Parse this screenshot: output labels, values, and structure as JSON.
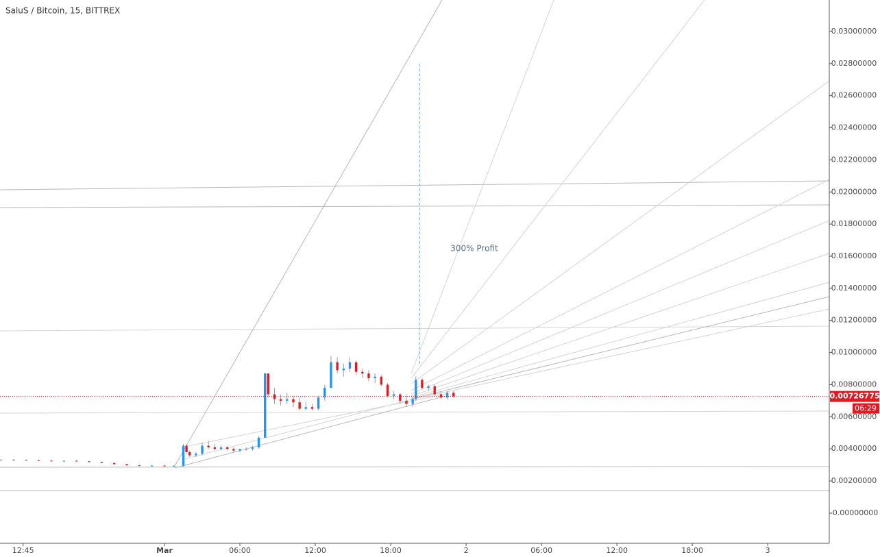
{
  "chart_data": {
    "type": "candlestick",
    "title": "SaluS / Bitcoin, 15, BITTREX",
    "annotation": "300% Profit",
    "countdown": "06:29",
    "up_color": "#2196f3",
    "down_color": "#e01b24",
    "xlim": [
      -13.09,
      52.9
    ],
    "xticks": [
      {
        "value": -11.25,
        "label": "12:45"
      },
      {
        "value": 0,
        "label": "Mar"
      },
      {
        "value": 6,
        "label": "06:00"
      },
      {
        "value": 12,
        "label": "12:00"
      },
      {
        "value": 18,
        "label": "18:00"
      },
      {
        "value": 24,
        "label": "2"
      },
      {
        "value": 30,
        "label": "06:00"
      },
      {
        "value": 36,
        "label": "12:00"
      },
      {
        "value": 42,
        "label": "18:00"
      },
      {
        "value": 48,
        "label": "3"
      }
    ],
    "ylim": [
      -0.00188,
      0.03196
    ],
    "yticks": [
      {
        "value": 0.03,
        "label": "0.03000000"
      },
      {
        "value": 0.028,
        "label": "0.02800000"
      },
      {
        "value": 0.026,
        "label": "0.02600000"
      },
      {
        "value": 0.024,
        "label": "0.02400000"
      },
      {
        "value": 0.022,
        "label": "0.02200000"
      },
      {
        "value": 0.02,
        "label": "0.02000000"
      },
      {
        "value": 0.018,
        "label": "0.01800000"
      },
      {
        "value": 0.016,
        "label": "0.01600000"
      },
      {
        "value": 0.014,
        "label": "0.01400000"
      },
      {
        "value": 0.012,
        "label": "0.01200000"
      },
      {
        "value": 0.01,
        "label": "0.01000000"
      },
      {
        "value": 0.008,
        "label": "0.00800000"
      },
      {
        "value": 0.006,
        "label": "0.00600000"
      },
      {
        "value": 0.004,
        "label": "0.00400000"
      },
      {
        "value": 0.002,
        "label": "0.00200000"
      },
      {
        "value": 0,
        "label": "-0.00000000"
      }
    ],
    "profit_marker": {
      "x": 20.3,
      "from": 0.0093,
      "to": 0.0281
    },
    "candles": {
      "x": [
        -13,
        -12,
        -11,
        -10,
        -9,
        -8,
        -7,
        -6,
        -5,
        -4,
        -3,
        -2,
        -1,
        0,
        0.75,
        1.5,
        1.75,
        2,
        2.5,
        3,
        3.5,
        4,
        4.5,
        5,
        5.5,
        6,
        6.5,
        7,
        7.5,
        8,
        8.25,
        8.75,
        9.25,
        9.75,
        10.25,
        10.75,
        11.25,
        11.75,
        12.25,
        12.75,
        13.25,
        13.75,
        14.25,
        14.75,
        15.25,
        15.75,
        16.25,
        16.75,
        17.25,
        17.75,
        18.25,
        18.75,
        19.25,
        19.75,
        20,
        20.5,
        21,
        21.5,
        22,
        22.5,
        23
      ],
      "open": [
        0.0033,
        0.00332,
        0.00331,
        0.0033,
        0.00327,
        0.00324,
        0.00326,
        0.00323,
        0.00318,
        0.00312,
        0.00305,
        0.00298,
        0.00294,
        0.00296,
        0.00292,
        0.00295,
        0.0042,
        0.0038,
        0.0036,
        0.0037,
        0.0042,
        0.0041,
        0.004,
        0.0041,
        0.004,
        0.0039,
        0.004,
        0.004,
        0.0041,
        0.0047,
        0.0087,
        0.0074,
        0.0071,
        0.007,
        0.0071,
        0.0069,
        0.0065,
        0.0066,
        0.0065,
        0.0072,
        0.0078,
        0.0094,
        0.0089,
        0.009,
        0.0094,
        0.0088,
        0.0087,
        0.0084,
        0.0085,
        0.008,
        0.0073,
        0.0074,
        0.007,
        0.0068,
        0.0071,
        0.0083,
        0.0078,
        0.0079,
        0.0074,
        0.0072,
        0.0075
      ],
      "high": [
        0.00335,
        0.00336,
        0.00334,
        0.00333,
        0.0033,
        0.00328,
        0.0033,
        0.00326,
        0.0032,
        0.00315,
        0.00308,
        0.003,
        0.003,
        0.003,
        0.003,
        0.0043,
        0.0043,
        0.0039,
        0.0038,
        0.0044,
        0.0045,
        0.0043,
        0.0042,
        0.0042,
        0.0041,
        0.004,
        0.0041,
        0.0042,
        0.0048,
        0.0087,
        0.0087,
        0.0078,
        0.0074,
        0.0075,
        0.0073,
        0.0072,
        0.0069,
        0.0068,
        0.0073,
        0.008,
        0.0098,
        0.0097,
        0.0093,
        0.0097,
        0.0095,
        0.009,
        0.0089,
        0.0087,
        0.0086,
        0.0081,
        0.0076,
        0.0075,
        0.0074,
        0.0072,
        0.0085,
        0.0084,
        0.008,
        0.008,
        0.0076,
        0.0076,
        0.0076
      ],
      "low": [
        0.00328,
        0.0033,
        0.00327,
        0.00325,
        0.00322,
        0.0032,
        0.00322,
        0.00315,
        0.0031,
        0.00302,
        0.00295,
        0.00292,
        0.0029,
        0.0029,
        0.00288,
        0.0029,
        0.0037,
        0.0035,
        0.0035,
        0.0036,
        0.004,
        0.0039,
        0.0039,
        0.0039,
        0.0038,
        0.0038,
        0.0039,
        0.0039,
        0.004,
        0.0047,
        0.0072,
        0.0068,
        0.0067,
        0.0068,
        0.0066,
        0.0064,
        0.0064,
        0.0064,
        0.0064,
        0.007,
        0.0078,
        0.0087,
        0.0085,
        0.0088,
        0.0086,
        0.0084,
        0.0082,
        0.0081,
        0.0079,
        0.0072,
        0.0071,
        0.0068,
        0.0066,
        0.0066,
        0.007,
        0.0077,
        0.0076,
        0.0073,
        0.0071,
        0.0071,
        0.00722
      ],
      "close": [
        0.00332,
        0.00331,
        0.0033,
        0.00327,
        0.00324,
        0.00326,
        0.00323,
        0.00318,
        0.00312,
        0.00305,
        0.00298,
        0.00294,
        0.00296,
        0.00292,
        0.00295,
        0.0042,
        0.0038,
        0.0036,
        0.0037,
        0.0042,
        0.0041,
        0.004,
        0.0041,
        0.004,
        0.0039,
        0.004,
        0.004,
        0.0041,
        0.0047,
        0.0087,
        0.0074,
        0.0071,
        0.007,
        0.0071,
        0.0069,
        0.0065,
        0.0066,
        0.0065,
        0.0072,
        0.0078,
        0.0094,
        0.0089,
        0.009,
        0.0094,
        0.0088,
        0.0087,
        0.0084,
        0.0085,
        0.008,
        0.0073,
        0.0074,
        0.007,
        0.0068,
        0.0071,
        0.0083,
        0.0078,
        0.0079,
        0.0074,
        0.0072,
        0.0075,
        0.00726775
      ]
    }
  }
}
